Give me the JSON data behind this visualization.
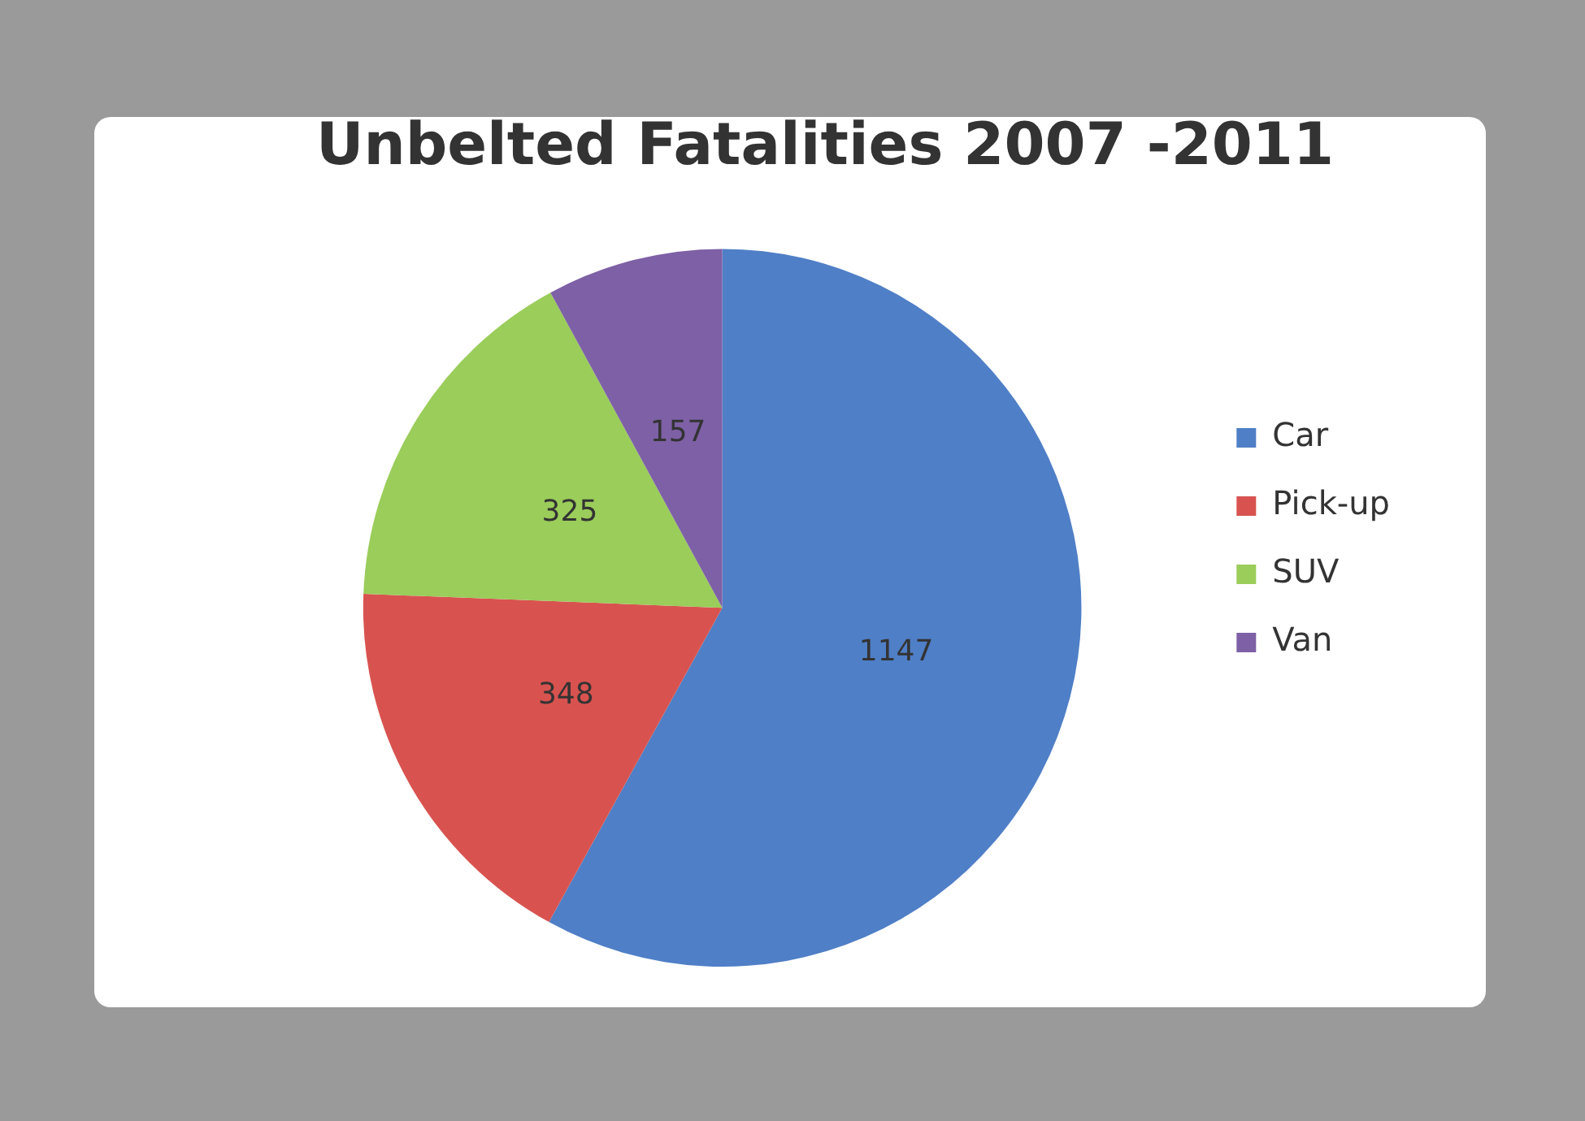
{
  "chart_data": {
    "type": "pie",
    "title": "Unbelted Fatalities 2007 -2011",
    "categories": [
      "Car",
      "Pick-up",
      "SUV",
      "Van"
    ],
    "values": [
      1147,
      348,
      325,
      157
    ],
    "colors": [
      "#4f7fc6",
      "#d8534f",
      "#9acd5a",
      "#7e60a6"
    ],
    "data_labels": true,
    "legend": "right"
  }
}
